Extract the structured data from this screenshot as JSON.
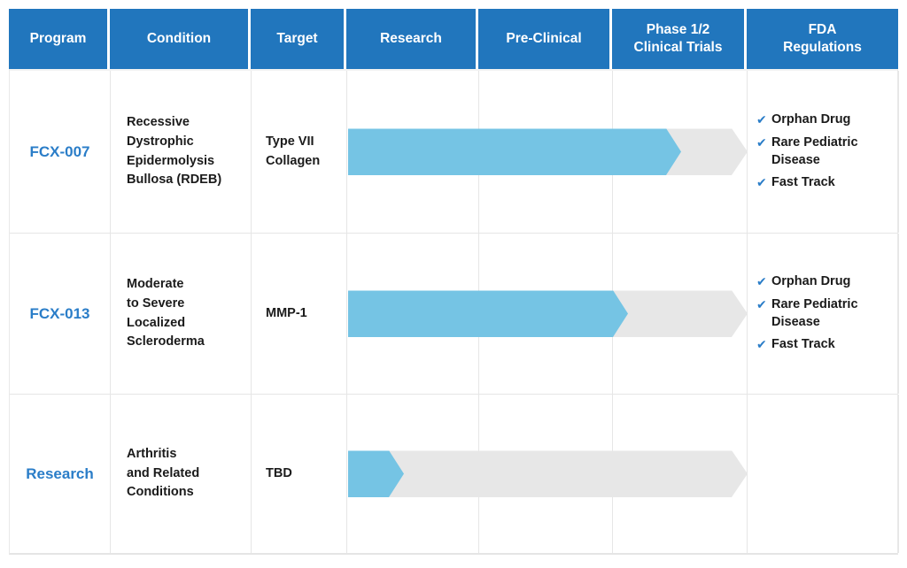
{
  "colors": {
    "header_bg": "#2176bd",
    "header_text": "#ffffff",
    "program_text": "#2a7dc8",
    "bar_blue": "#75c4e4",
    "bar_gray": "#e7e7e7",
    "check_blue": "#2a7dc8",
    "body_text": "#1b1b1b",
    "grid_line": "#e6e6e6"
  },
  "icons": {
    "check": "✔"
  },
  "header": {
    "columns": [
      "Program",
      "Condition",
      "Target",
      "Research",
      "Pre-Clinical",
      "Phase 1/2\nClinical Trials",
      "FDA\nRegulations"
    ]
  },
  "chart_data": {
    "type": "table",
    "title": "Drug development pipeline",
    "stages": [
      "Research",
      "Pre-Clinical",
      "Phase 1/2 Clinical Trials"
    ],
    "rows": [
      {
        "program": "FCX-007",
        "condition": "Recessive\nDystrophic\nEpidermolysis\nBullosa (RDEB)",
        "target": "Type VII\nCollagen",
        "progress": 0.834,
        "stage_reached": "Phase 1/2 Clinical Trials",
        "fda_designations": [
          "Orphan Drug",
          "Rare Pediatric Disease",
          "Fast Track"
        ]
      },
      {
        "program": "FCX-013",
        "condition": "Moderate\nto Severe\nLocalized\nScleroderma",
        "target": "MMP-1",
        "progress": 0.701,
        "stage_reached": "Phase 1/2 Clinical Trials",
        "fda_designations": [
          "Orphan Drug",
          "Rare Pediatric Disease",
          "Fast Track"
        ]
      },
      {
        "program": "Research",
        "condition": "Arthritis\nand Related\nConditions",
        "target": "TBD",
        "progress": 0.14,
        "stage_reached": "Research",
        "fda_designations": []
      }
    ]
  }
}
